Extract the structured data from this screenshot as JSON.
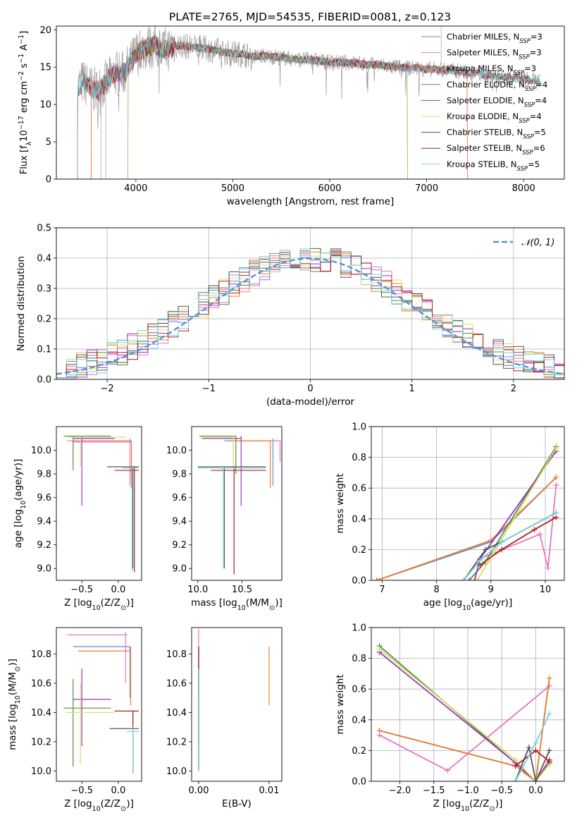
{
  "series_styles": [
    {
      "name": "Chabrier MILES",
      "nssp": "3",
      "color": "#5b8fd6"
    },
    {
      "name": "Salpeter MILES",
      "nssp": "3",
      "color": "#e377c2"
    },
    {
      "name": "Kroupa MILES",
      "nssp": "3",
      "color": "#ef7f2f"
    },
    {
      "name": "Chabrier ELODIE",
      "nssp": "4",
      "color": "#4f8f3f"
    },
    {
      "name": "Salpeter ELODIE",
      "nssp": "4",
      "color": "#9b36c2"
    },
    {
      "name": "Kroupa ELODIE",
      "nssp": "4",
      "color": "#d8e060"
    },
    {
      "name": "Chabrier STELIB",
      "nssp": "5",
      "color": "#555555"
    },
    {
      "name": "Salpeter STELIB",
      "nssp": "6",
      "color": "#b01c1c"
    },
    {
      "name": "Kroupa STELIB",
      "nssp": "5",
      "color": "#76d2dc"
    }
  ],
  "chart_data": [
    {
      "id": "spectrum",
      "type": "line",
      "title": "PLATE=2765, MJD=54535, FIBERID=0081, z=0.123",
      "xlabel": "wavelength [Angstrom, rest frame]",
      "ylabel_parts": [
        "Flux [f",
        "λ",
        "10",
        "−17",
        " erg cm",
        "−2",
        " s",
        "−1",
        " A",
        "−1",
        "]"
      ],
      "xlim": [
        3180,
        8420
      ],
      "ylim": [
        0,
        20.5
      ],
      "xticks": [
        4000,
        5000,
        6000,
        7000,
        8000
      ],
      "yticks": [
        0,
        5,
        10,
        15,
        20
      ],
      "legend_loc": "upper right",
      "legend_labels": [
        "Chabrier MILES, N_SSP=3",
        "Salpeter MILES, N_SSP=3",
        "Kroupa MILES, N_SSP=3",
        "Chabrier ELODIE, N_SSP=4",
        "Salpeter ELODIE, N_SSP=4",
        "Kroupa ELODIE, N_SSP=4",
        "Chabrier STELIB, N_SSP=5",
        "Salpeter STELIB, N_SSP=6",
        "Kroupa STELIB, N_SSP=5"
      ],
      "data_points": [
        [
          3400,
          12.2
        ],
        [
          3450,
          13.0
        ],
        [
          3500,
          12.6
        ],
        [
          3550,
          12.0
        ],
        [
          3600,
          11.8
        ],
        [
          3650,
          12.4
        ],
        [
          3700,
          13.0
        ],
        [
          3750,
          13.8
        ],
        [
          3800,
          14.2
        ],
        [
          3850,
          14.0
        ],
        [
          3900,
          14.6
        ],
        [
          3950,
          15.6
        ],
        [
          4000,
          16.8
        ],
        [
          4100,
          17.6
        ],
        [
          4200,
          17.9
        ],
        [
          4300,
          17.3
        ],
        [
          4400,
          17.9
        ],
        [
          4500,
          17.8
        ],
        [
          4600,
          17.7
        ],
        [
          4700,
          17.5
        ],
        [
          4800,
          17.3
        ],
        [
          4900,
          17.0
        ],
        [
          5000,
          16.8
        ],
        [
          5100,
          16.8
        ],
        [
          5200,
          16.4
        ],
        [
          5300,
          16.5
        ],
        [
          5400,
          16.4
        ],
        [
          5500,
          16.3
        ],
        [
          5600,
          16.1
        ],
        [
          5700,
          16.0
        ],
        [
          5800,
          16.0
        ],
        [
          5900,
          15.8
        ],
        [
          6000,
          15.7
        ],
        [
          6100,
          15.6
        ],
        [
          6200,
          15.6
        ],
        [
          6300,
          15.5
        ],
        [
          6400,
          15.3
        ],
        [
          6500,
          15.3
        ],
        [
          6600,
          15.1
        ],
        [
          6700,
          15.0
        ],
        [
          6800,
          14.9
        ],
        [
          6900,
          14.9
        ],
        [
          7000,
          14.7
        ],
        [
          7100,
          14.7
        ],
        [
          7200,
          14.6
        ],
        [
          7300,
          14.5
        ],
        [
          7400,
          14.3
        ],
        [
          7500,
          14.2
        ],
        [
          7600,
          14.0
        ],
        [
          7700,
          13.8
        ],
        [
          7800,
          13.7
        ],
        [
          7900,
          13.6
        ],
        [
          8000,
          13.4
        ],
        [
          8100,
          13.2
        ],
        [
          8170,
          13.1
        ]
      ],
      "model_starts": {
        "Chabrier MILES": 3540,
        "Salpeter MILES": 3540,
        "Kroupa MILES": 3540,
        "Chabrier ELODIE": 3920,
        "Salpeter ELODIE": 3920,
        "Kroupa ELODIE": 3920,
        "Chabrier STELIB": 3400,
        "Salpeter STELIB": 3400,
        "Kroupa STELIB": 3400
      },
      "model_ends": {
        "Chabrier MILES": 7420,
        "Salpeter MILES": 7420,
        "Kroupa MILES": 7420,
        "Chabrier ELODIE": 6800,
        "Salpeter ELODIE": 6800,
        "Kroupa ELODIE": 6800,
        "Chabrier STELIB": 8170,
        "Salpeter STELIB": 8170,
        "Kroupa STELIB": 8170
      }
    },
    {
      "id": "residuals",
      "type": "histogram",
      "xlabel": "(data-model)/error",
      "ylabel": "Normed distribution",
      "xlim": [
        -2.5,
        2.5
      ],
      "ylim": [
        0,
        0.5
      ],
      "xticks": [
        -2,
        -1,
        0,
        1,
        2
      ],
      "yticks": [
        0.0,
        0.1,
        0.2,
        0.3,
        0.4,
        0.5
      ],
      "grid": true,
      "legend_label": "𝒩(0, 1)",
      "legend_loc": "upper right",
      "bin_width": 0.1,
      "bin_start": -2.5
    },
    {
      "id": "age-vs-Z",
      "type": "errorbar",
      "xlabel": "Z [log10(Z/Z⊙)]",
      "ylabel": "age [log10(age/yr)]",
      "xlim": [
        -0.85,
        0.32
      ],
      "ylim": [
        8.9,
        10.2
      ],
      "xticks": [
        -0.5,
        0.0
      ],
      "yticks": [
        9.0,
        9.2,
        9.4,
        9.6,
        9.8,
        10.0
      ],
      "points": [
        {
          "x": 0.18,
          "y": 10.08,
          "xl": -0.62,
          "xh": 0.18,
          "yl": 9.75,
          "yh": 10.08
        },
        {
          "x": 0.16,
          "y": 10.08,
          "xl": -0.7,
          "xh": 0.16,
          "yl": 9.7,
          "yh": 10.1
        },
        {
          "x": 0.18,
          "y": 10.07,
          "xl": -0.62,
          "xh": 0.18,
          "yl": 9.68,
          "yh": 10.08
        },
        {
          "x": -0.62,
          "y": 10.12,
          "xl": -0.75,
          "xh": -0.1,
          "yl": 9.83,
          "yh": 10.12
        },
        {
          "x": -0.5,
          "y": 10.1,
          "xl": -0.62,
          "xh": -0.05,
          "yl": 9.53,
          "yh": 10.12
        },
        {
          "x": -0.52,
          "y": 10.11,
          "xl": -0.7,
          "xh": 0.1,
          "yl": 9.86,
          "yh": 10.12
        },
        {
          "x": 0.2,
          "y": 9.86,
          "xl": -0.15,
          "xh": 0.28,
          "yl": 9.0,
          "yh": 9.86
        },
        {
          "x": 0.22,
          "y": 9.83,
          "xl": -0.05,
          "xh": 0.28,
          "yl": 8.97,
          "yh": 9.86
        },
        {
          "x": 0.19,
          "y": 9.85,
          "xl": 0.05,
          "xh": 0.28,
          "yl": 8.98,
          "yh": 9.86
        }
      ]
    },
    {
      "id": "age-vs-mass",
      "type": "errorbar",
      "xlabel": "mass [log10(M/M⊙)]",
      "ylabel": "",
      "xlim": [
        9.93,
        10.95
      ],
      "ylim": [
        8.9,
        10.2
      ],
      "xticks": [
        10.0,
        10.5
      ],
      "yticks": [
        9.0,
        9.2,
        9.4,
        9.6,
        9.8,
        10.0
      ],
      "points": [
        {
          "x": 10.85,
          "y": 10.08,
          "xl": 10.3,
          "xh": 10.85,
          "yl": 9.7,
          "yh": 10.1
        },
        {
          "x": 10.93,
          "y": 10.08,
          "xl": 10.4,
          "xh": 10.93,
          "yl": 9.9,
          "yh": 10.08
        },
        {
          "x": 10.82,
          "y": 10.08,
          "xl": 10.4,
          "xh": 10.82,
          "yl": 9.68,
          "yh": 10.08
        },
        {
          "x": 10.43,
          "y": 10.12,
          "xl": 10.02,
          "xh": 10.43,
          "yl": 9.8,
          "yh": 10.12
        },
        {
          "x": 10.49,
          "y": 10.1,
          "xl": 10.05,
          "xh": 10.49,
          "yl": 9.53,
          "yh": 10.12
        },
        {
          "x": 10.4,
          "y": 10.11,
          "xl": 10.02,
          "xh": 10.4,
          "yl": 9.86,
          "yh": 10.12
        },
        {
          "x": 10.3,
          "y": 9.86,
          "xl": 10.0,
          "xh": 10.77,
          "yl": 9.0,
          "yh": 9.86
        },
        {
          "x": 10.41,
          "y": 9.83,
          "xl": 10.15,
          "xh": 10.77,
          "yl": 8.95,
          "yh": 9.86
        },
        {
          "x": 10.29,
          "y": 9.85,
          "xl": 10.0,
          "xh": 10.77,
          "yl": 9.0,
          "yh": 9.86
        }
      ]
    },
    {
      "id": "mass-weight-vs-age",
      "type": "line",
      "xlabel": "age [log10(age/yr)]",
      "ylabel": "mass weight",
      "xlim": [
        6.8,
        10.35
      ],
      "ylim": [
        0.0,
        1.0
      ],
      "xticks": [
        7,
        8,
        9,
        10
      ],
      "yticks": [
        0.0,
        0.2,
        0.4,
        0.6,
        0.8,
        1.0
      ],
      "grid": true,
      "series": [
        {
          "x": [
            6.9,
            9.0,
            10.2
          ],
          "y": [
            0.0,
            0.25,
            0.67
          ]
        },
        {
          "x": [
            8.8,
            9.9,
            10.05,
            10.2
          ],
          "y": [
            0.14,
            0.3,
            0.08,
            0.62
          ]
        },
        {
          "x": [
            6.9,
            9.0,
            10.2
          ],
          "y": [
            0.0,
            0.26,
            0.67
          ]
        },
        {
          "x": [
            8.6,
            8.9,
            10.2
          ],
          "y": [
            0.0,
            0.12,
            0.87
          ]
        },
        {
          "x": [
            8.7,
            8.8,
            10.2
          ],
          "y": [
            0.0,
            0.14,
            0.84
          ]
        },
        {
          "x": [
            8.75,
            8.95,
            10.2
          ],
          "y": [
            0.0,
            0.12,
            0.86
          ]
        },
        {
          "x": [
            8.5,
            8.9,
            9.2,
            10.2
          ],
          "y": [
            0.0,
            0.2,
            0.25,
            0.44
          ]
        },
        {
          "x": [
            8.8,
            9.2,
            9.8,
            10.2
          ],
          "y": [
            0.1,
            0.2,
            0.33,
            0.41
          ]
        },
        {
          "x": [
            8.5,
            8.8,
            9.2,
            10.2
          ],
          "y": [
            0.0,
            0.13,
            0.25,
            0.44
          ]
        }
      ]
    },
    {
      "id": "mass-vs-Z",
      "type": "errorbar",
      "xlabel": "Z [log10(Z/Z⊙)]",
      "ylabel": "mass [log10(M/M⊙)]",
      "xlim": [
        -0.85,
        0.32
      ],
      "ylim": [
        9.93,
        10.98
      ],
      "xticks": [
        -0.5,
        0.0
      ],
      "yticks": [
        10.0,
        10.2,
        10.4,
        10.6,
        10.8
      ],
      "points": [
        {
          "x": 0.16,
          "y": 10.85,
          "xl": -0.62,
          "xh": 0.16,
          "yl": 10.5,
          "yh": 10.85
        },
        {
          "x": 0.1,
          "y": 10.93,
          "xl": -0.7,
          "xh": 0.12,
          "yl": 10.6,
          "yh": 10.95
        },
        {
          "x": 0.17,
          "y": 10.82,
          "xl": -0.55,
          "xh": 0.17,
          "yl": 10.45,
          "yh": 10.85
        },
        {
          "x": -0.62,
          "y": 10.43,
          "xl": -0.75,
          "xh": -0.1,
          "yl": 10.03,
          "yh": 10.63
        },
        {
          "x": -0.5,
          "y": 10.49,
          "xl": -0.62,
          "xh": -0.1,
          "yl": 10.17,
          "yh": 10.7
        },
        {
          "x": -0.52,
          "y": 10.4,
          "xl": -0.72,
          "xh": -0.05,
          "yl": 10.05,
          "yh": 10.6
        },
        {
          "x": 0.2,
          "y": 10.29,
          "xl": -0.12,
          "xh": 0.28,
          "yl": 10.0,
          "yh": 10.41
        },
        {
          "x": 0.2,
          "y": 10.41,
          "xl": -0.05,
          "xh": 0.28,
          "yl": 9.98,
          "yh": 10.41
        },
        {
          "x": 0.2,
          "y": 10.27,
          "xl": 0.12,
          "xh": 0.28,
          "yl": 9.98,
          "yh": 10.3
        }
      ]
    },
    {
      "id": "mass-vs-EBV",
      "type": "errorbar",
      "xlabel": "E(B-V)",
      "ylabel": "",
      "xlim": [
        -0.001,
        0.0118
      ],
      "ylim": [
        9.93,
        10.98
      ],
      "xticks": [
        0.0,
        0.01
      ],
      "yticks": [
        10.0,
        10.2,
        10.4,
        10.6,
        10.8
      ],
      "points": [
        {
          "x": 0.0,
          "y": 10.85,
          "xl": 0.0,
          "xh": 0.0,
          "yl": 10.5,
          "yh": 10.85
        },
        {
          "x": 0.0,
          "y": 10.93,
          "xl": 0.0,
          "xh": 0.0,
          "yl": 10.6,
          "yh": 10.97
        },
        {
          "x": 0.01,
          "y": 10.82,
          "xl": 0.01,
          "xh": 0.01,
          "yl": 10.45,
          "yh": 10.85
        },
        {
          "x": 0.0,
          "y": 10.43,
          "xl": 0.0,
          "xh": 0.0,
          "yl": 10.03,
          "yh": 10.63
        },
        {
          "x": 0.0,
          "y": 10.49,
          "xl": 0.0,
          "xh": 0.0,
          "yl": 10.17,
          "yh": 10.7
        },
        {
          "x": 0.0,
          "y": 10.4,
          "xl": 0.0,
          "xh": 0.0,
          "yl": 10.05,
          "yh": 10.6
        },
        {
          "x": 0.0,
          "y": 10.29,
          "xl": 0.0,
          "xh": 0.0,
          "yl": 10.0,
          "yh": 10.85
        },
        {
          "x": 0.0,
          "y": 10.41,
          "xl": 0.0,
          "xh": 0.0,
          "yl": 10.0,
          "yh": 10.85
        },
        {
          "x": 0.0,
          "y": 10.27,
          "xl": 0.0,
          "xh": 0.0,
          "yl": 10.0,
          "yh": 10.7
        }
      ]
    },
    {
      "id": "mass-weight-vs-Z",
      "type": "line",
      "xlabel": "Z [log10(Z/Z⊙)]",
      "ylabel": "mass weight",
      "xlim": [
        -2.42,
        0.42
      ],
      "ylim": [
        0.0,
        1.0
      ],
      "xticks": [
        -2.0,
        -1.5,
        -1.0,
        -0.5,
        0.0
      ],
      "yticks": [
        0.0,
        0.2,
        0.4,
        0.6,
        0.8,
        1.0
      ],
      "grid": true,
      "series": [
        {
          "x": [
            -2.3,
            -0.3,
            0.0,
            0.2
          ],
          "y": [
            0.33,
            0.1,
            0.0,
            0.67
          ]
        },
        {
          "x": [
            -2.3,
            -1.3,
            0.2
          ],
          "y": [
            0.3,
            0.07,
            0.62
          ]
        },
        {
          "x": [
            -2.3,
            -0.3,
            0.0,
            0.2
          ],
          "y": [
            0.33,
            0.1,
            0.0,
            0.67
          ]
        },
        {
          "x": [
            -2.3,
            -0.3,
            0.0,
            0.2
          ],
          "y": [
            0.88,
            0.12,
            0.0,
            0.12
          ]
        },
        {
          "x": [
            -2.3,
            -0.3,
            0.0,
            0.2
          ],
          "y": [
            0.84,
            0.12,
            0.0,
            0.14
          ]
        },
        {
          "x": [
            -2.3,
            -0.3,
            0.0,
            0.2
          ],
          "y": [
            0.86,
            0.14,
            0.0,
            0.11
          ]
        },
        {
          "x": [
            -0.3,
            -0.1,
            0.0,
            0.2
          ],
          "y": [
            0.0,
            0.22,
            0.0,
            0.2
          ]
        },
        {
          "x": [
            -0.3,
            0.0,
            0.2
          ],
          "y": [
            0.1,
            0.2,
            0.13
          ]
        },
        {
          "x": [
            -0.3,
            0.0,
            0.2
          ],
          "y": [
            0.0,
            0.25,
            0.44
          ]
        }
      ]
    }
  ]
}
